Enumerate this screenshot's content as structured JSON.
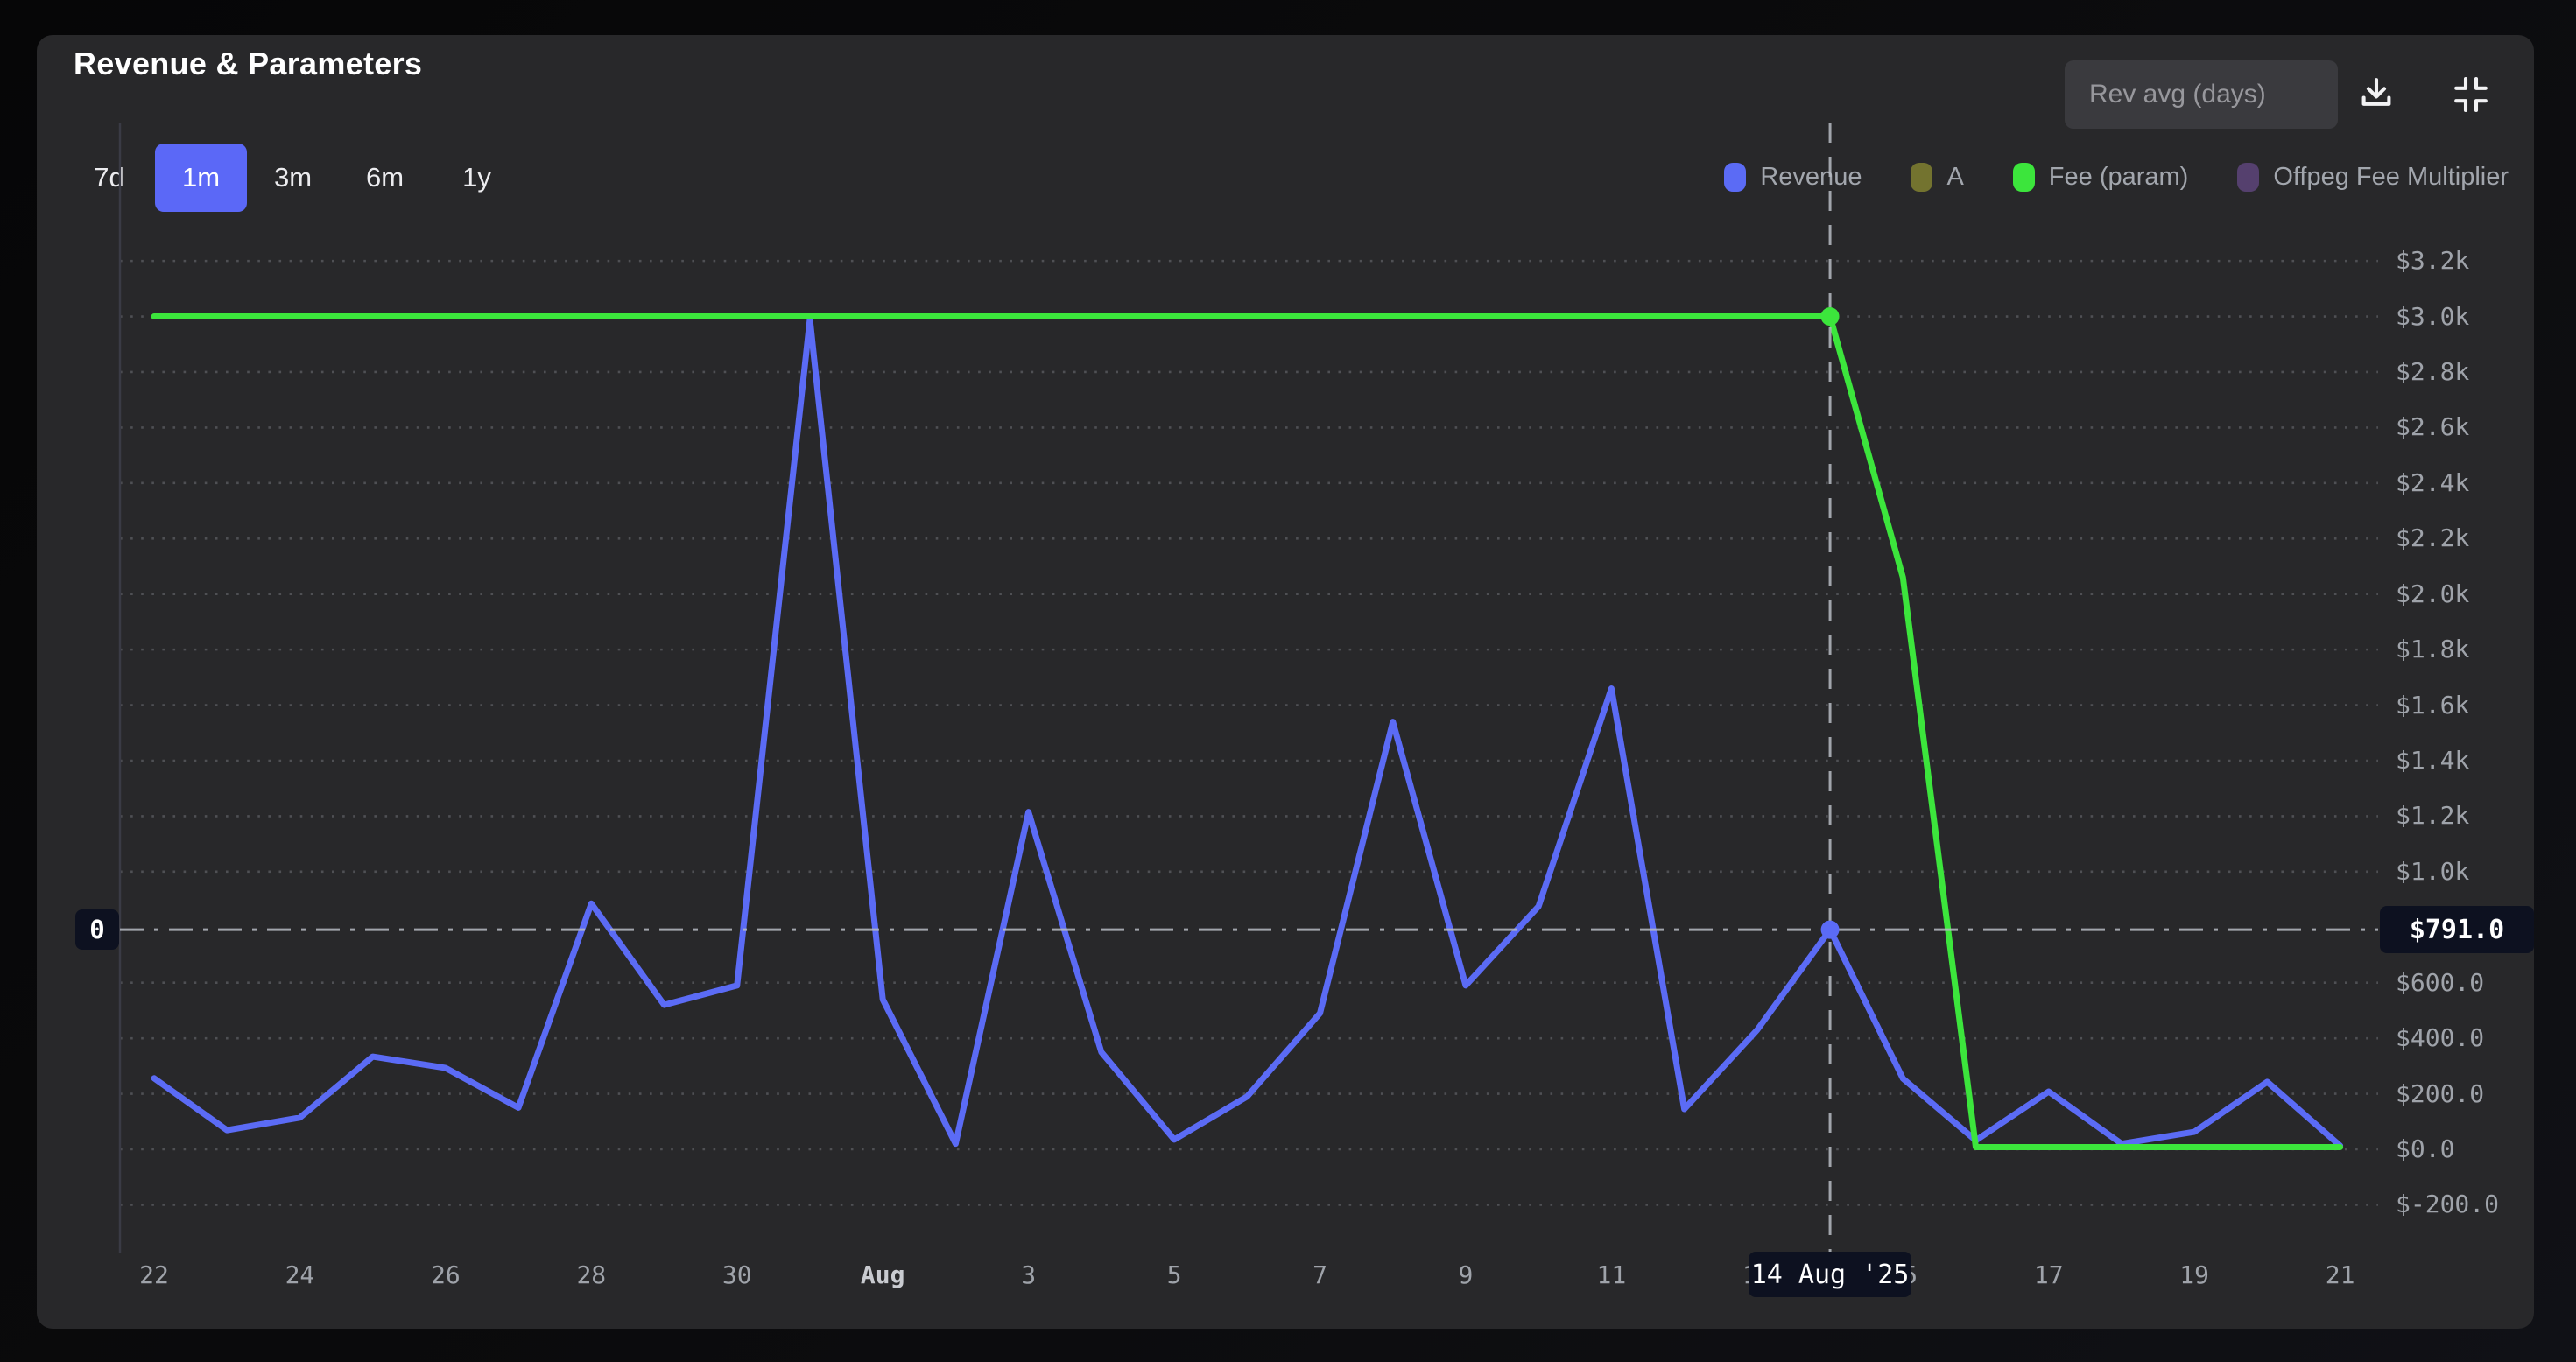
{
  "header": {
    "title": "Revenue & Parameters",
    "rev_avg_placeholder": "Rev avg (days)"
  },
  "toolbar": {
    "ranges": [
      "7d",
      "1m",
      "3m",
      "6m",
      "1y"
    ],
    "active_range": "1m"
  },
  "legend": [
    {
      "label": "Revenue",
      "color": "#5b6bf5",
      "active": true
    },
    {
      "label": "A",
      "color": "#73732f",
      "active": false
    },
    {
      "label": "Fee (param)",
      "color": "#3ce53c",
      "active": true
    },
    {
      "label": "Offpeg Fee Multiplier",
      "color": "#55406e",
      "active": false
    }
  ],
  "icons": {
    "download": "download-icon",
    "collapse": "collapse-icon"
  },
  "crosshair": {
    "date_label": "14 Aug '25",
    "value_label": "$791.0",
    "left_axis_label": "0",
    "day_index": 23,
    "revenue_value": 791,
    "fee_value": 3000
  },
  "chart_data": {
    "type": "line",
    "title": "Revenue & Parameters",
    "xlabel": "",
    "ylabel": "",
    "y_axis_side": "right",
    "grid": "horizontal-dotted",
    "ylim": [
      -300,
      3300
    ],
    "x_dates": [
      "Jul 22",
      "Jul 23",
      "Jul 24",
      "Jul 25",
      "Jul 26",
      "Jul 27",
      "Jul 28",
      "Jul 29",
      "Jul 30",
      "Jul 31",
      "Aug 1",
      "Aug 2",
      "Aug 3",
      "Aug 4",
      "Aug 5",
      "Aug 6",
      "Aug 7",
      "Aug 8",
      "Aug 9",
      "Aug 10",
      "Aug 11",
      "Aug 12",
      "Aug 13",
      "Aug 14",
      "Aug 15",
      "Aug 16",
      "Aug 17",
      "Aug 18",
      "Aug 19",
      "Aug 20",
      "Aug 21"
    ],
    "series": [
      {
        "name": "Revenue",
        "color": "#5b6bf5",
        "unit": "USD",
        "values": [
          256,
          69,
          114,
          334,
          293,
          150,
          885,
          520,
          590,
          2990,
          540,
          20,
          1215,
          350,
          35,
          190,
          490,
          1540,
          590,
          875,
          1660,
          145,
          430,
          791,
          255,
          32,
          208,
          20,
          63,
          243,
          13
        ]
      },
      {
        "name": "Fee (param)",
        "color": "#3ce53c",
        "unit": "USD",
        "values": [
          3000,
          3000,
          3000,
          3000,
          3000,
          3000,
          3000,
          3000,
          3000,
          3000,
          3000,
          3000,
          3000,
          3000,
          3000,
          3000,
          3000,
          3000,
          3000,
          3000,
          3000,
          3000,
          3000,
          3000,
          2060,
          8,
          8,
          8,
          8,
          8,
          8
        ]
      }
    ],
    "inactive_series": [
      "A",
      "Offpeg Fee Multiplier"
    ],
    "y_ticks": [
      {
        "v": 3200,
        "label": "$3.2k"
      },
      {
        "v": 3000,
        "label": "$3.0k"
      },
      {
        "v": 2800,
        "label": "$2.8k"
      },
      {
        "v": 2600,
        "label": "$2.6k"
      },
      {
        "v": 2400,
        "label": "$2.4k"
      },
      {
        "v": 2200,
        "label": "$2.2k"
      },
      {
        "v": 2000,
        "label": "$2.0k"
      },
      {
        "v": 1800,
        "label": "$1.8k"
      },
      {
        "v": 1600,
        "label": "$1.6k"
      },
      {
        "v": 1400,
        "label": "$1.4k"
      },
      {
        "v": 1200,
        "label": "$1.2k"
      },
      {
        "v": 1000,
        "label": "$1.0k"
      },
      {
        "v": 600,
        "label": "$600.0"
      },
      {
        "v": 400,
        "label": "$400.0"
      },
      {
        "v": 200,
        "label": "$200.0"
      },
      {
        "v": 0,
        "label": "$0.0"
      },
      {
        "v": -200,
        "label": "$-200.0"
      }
    ],
    "x_ticks": [
      {
        "i": 0,
        "label": "22"
      },
      {
        "i": 2,
        "label": "24"
      },
      {
        "i": 4,
        "label": "26"
      },
      {
        "i": 6,
        "label": "28"
      },
      {
        "i": 8,
        "label": "30"
      },
      {
        "i": 10,
        "label": "Aug",
        "bold": true
      },
      {
        "i": 12,
        "label": "3"
      },
      {
        "i": 14,
        "label": "5"
      },
      {
        "i": 16,
        "label": "7"
      },
      {
        "i": 18,
        "label": "9"
      },
      {
        "i": 20,
        "label": "11"
      },
      {
        "i": 22,
        "label": "13"
      },
      {
        "i": 24,
        "label": "15"
      },
      {
        "i": 26,
        "label": "17"
      },
      {
        "i": 28,
        "label": "19"
      },
      {
        "i": 30,
        "label": "21"
      }
    ]
  }
}
